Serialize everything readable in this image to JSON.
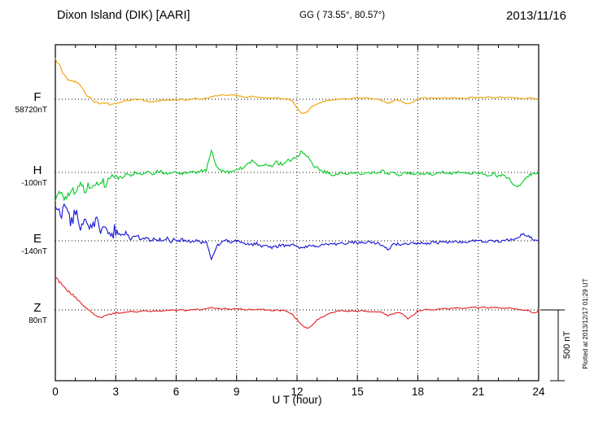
{
  "header": {
    "station_title": "Dixon Island (DIK)  [AARI]",
    "geo_coords": "GG ( 73.55°,  80.57°)",
    "date": "2013/11/16"
  },
  "axis": {
    "xlabel": "U T (hour)",
    "xmin": 0,
    "xmax": 24,
    "xticks": [
      0,
      3,
      6,
      9,
      12,
      15,
      18,
      21,
      24
    ],
    "minor_tick_hours": 1
  },
  "scalebar": {
    "label": "500 nT",
    "span_nT": 500
  },
  "plotted_note": "Plotted at 2013/12/17 01:29 UT",
  "chart_data": {
    "type": "line",
    "title": "Magnetogram, Dixon Island (DIK) [AARI], 2013/11/16",
    "x_unit": "hour (UT)",
    "x_start": 0,
    "x_step": 0.25,
    "x_end": 24,
    "y_unit": "nT (offset from component baseline)",
    "grid": "dotted vertical lines every 3 h; dotted horizontal line at each component baseline",
    "legend_position": "left margin, one colored label per component",
    "series": [
      {
        "name": "F",
        "baseline_label": "58720nT",
        "baseline_nT": 58720,
        "color": "#efa200",
        "noise_envelope": [
          {
            "to": 2,
            "amp": 12
          },
          {
            "to": 24,
            "amp": 4
          }
        ],
        "values_offset_nT": [
          280,
          230,
          150,
          120,
          130,
          90,
          40,
          10,
          -20,
          -30,
          -25,
          -40,
          -30,
          -20,
          -10,
          -5,
          0,
          -5,
          -10,
          -20,
          -15,
          -10,
          -5,
          -10,
          -5,
          0,
          -5,
          0,
          5,
          0,
          5,
          20,
          25,
          30,
          25,
          30,
          25,
          20,
          15,
          20,
          15,
          10,
          10,
          5,
          10,
          5,
          0,
          -10,
          -60,
          -100,
          -90,
          -50,
          -30,
          -20,
          -10,
          -5,
          0,
          5,
          0,
          5,
          10,
          5,
          10,
          5,
          0,
          -10,
          -30,
          -15,
          -5,
          -20,
          -35,
          -20,
          0,
          10,
          5,
          10,
          5,
          10,
          5,
          10,
          10,
          5,
          10,
          15,
          10,
          10,
          15,
          10,
          15,
          10,
          15,
          10,
          10,
          5,
          10,
          5,
          0
        ]
      },
      {
        "name": "H",
        "baseline_label": "-100nT",
        "baseline_nT": -100,
        "color": "#00cc22",
        "noise_envelope": [
          {
            "to": 3,
            "amp": 30
          },
          {
            "to": 13,
            "amp": 12
          },
          {
            "to": 24,
            "amp": 10
          }
        ],
        "values_offset_nT": [
          -190,
          -150,
          -180,
          -120,
          -140,
          -90,
          -120,
          -80,
          -100,
          -60,
          -80,
          -50,
          -30,
          -40,
          -10,
          -20,
          0,
          -15,
          5,
          -10,
          0,
          10,
          -5,
          5,
          0,
          -10,
          0,
          10,
          0,
          10,
          20,
          150,
          40,
          10,
          0,
          10,
          20,
          30,
          60,
          80,
          50,
          40,
          60,
          50,
          70,
          60,
          80,
          90,
          110,
          150,
          120,
          60,
          30,
          10,
          0,
          -20,
          -10,
          0,
          -15,
          -5,
          0,
          -10,
          5,
          -5,
          0,
          10,
          -10,
          0,
          -20,
          -10,
          0,
          -10,
          0,
          -15,
          -5,
          -20,
          -10,
          0,
          -10,
          -5,
          0,
          -10,
          0,
          -5,
          0,
          -10,
          -20,
          -10,
          -30,
          -20,
          -40,
          -80,
          -100,
          -60,
          -20,
          -10,
          0
        ]
      },
      {
        "name": "E",
        "baseline_label": "-140nT",
        "baseline_nT": -140,
        "color": "#1414d6",
        "noise_envelope": [
          {
            "to": 3,
            "amp": 45
          },
          {
            "to": 7,
            "amp": 15
          },
          {
            "to": 24,
            "amp": 10
          }
        ],
        "values_offset_nT": [
          260,
          170,
          240,
          130,
          200,
          100,
          170,
          80,
          150,
          60,
          120,
          40,
          80,
          30,
          60,
          20,
          40,
          10,
          30,
          0,
          20,
          5,
          15,
          0,
          10,
          0,
          10,
          -5,
          5,
          -10,
          0,
          -130,
          -40,
          -10,
          0,
          -10,
          0,
          -10,
          -20,
          -30,
          -20,
          -40,
          -30,
          -50,
          -40,
          -30,
          -40,
          -30,
          -40,
          -50,
          -40,
          -30,
          -40,
          -30,
          -20,
          -30,
          -20,
          -10,
          -20,
          -10,
          -15,
          -5,
          -15,
          -10,
          -20,
          -40,
          -60,
          -30,
          -20,
          -30,
          -20,
          -10,
          -20,
          -10,
          -20,
          -10,
          -15,
          -5,
          -10,
          -5,
          -10,
          -5,
          -10,
          0,
          -5,
          0,
          -5,
          0,
          -5,
          0,
          5,
          10,
          30,
          50,
          30,
          10,
          0
        ]
      },
      {
        "name": "Z",
        "baseline_label": "80nT",
        "baseline_nT": 80,
        "color": "#e62020",
        "noise_envelope": [
          {
            "to": 1.5,
            "amp": 10
          },
          {
            "to": 24,
            "amp": 4
          }
        ],
        "values_offset_nT": [
          230,
          190,
          150,
          120,
          90,
          60,
          20,
          -10,
          -40,
          -55,
          -40,
          -30,
          -20,
          -25,
          -15,
          -10,
          -15,
          -10,
          -5,
          -10,
          -5,
          -10,
          -5,
          0,
          -5,
          0,
          -5,
          0,
          5,
          0,
          10,
          15,
          10,
          5,
          10,
          5,
          10,
          5,
          0,
          5,
          0,
          5,
          0,
          -5,
          0,
          -5,
          -10,
          -30,
          -70,
          -110,
          -130,
          -110,
          -70,
          -50,
          -30,
          -20,
          -10,
          -5,
          -10,
          -5,
          -10,
          -5,
          -10,
          -15,
          -10,
          -20,
          -40,
          -30,
          -20,
          -30,
          -60,
          -40,
          -10,
          0,
          5,
          0,
          5,
          10,
          5,
          10,
          15,
          10,
          15,
          20,
          15,
          20,
          15,
          20,
          15,
          10,
          15,
          10,
          5,
          0,
          -5,
          -20,
          -10
        ]
      }
    ]
  }
}
